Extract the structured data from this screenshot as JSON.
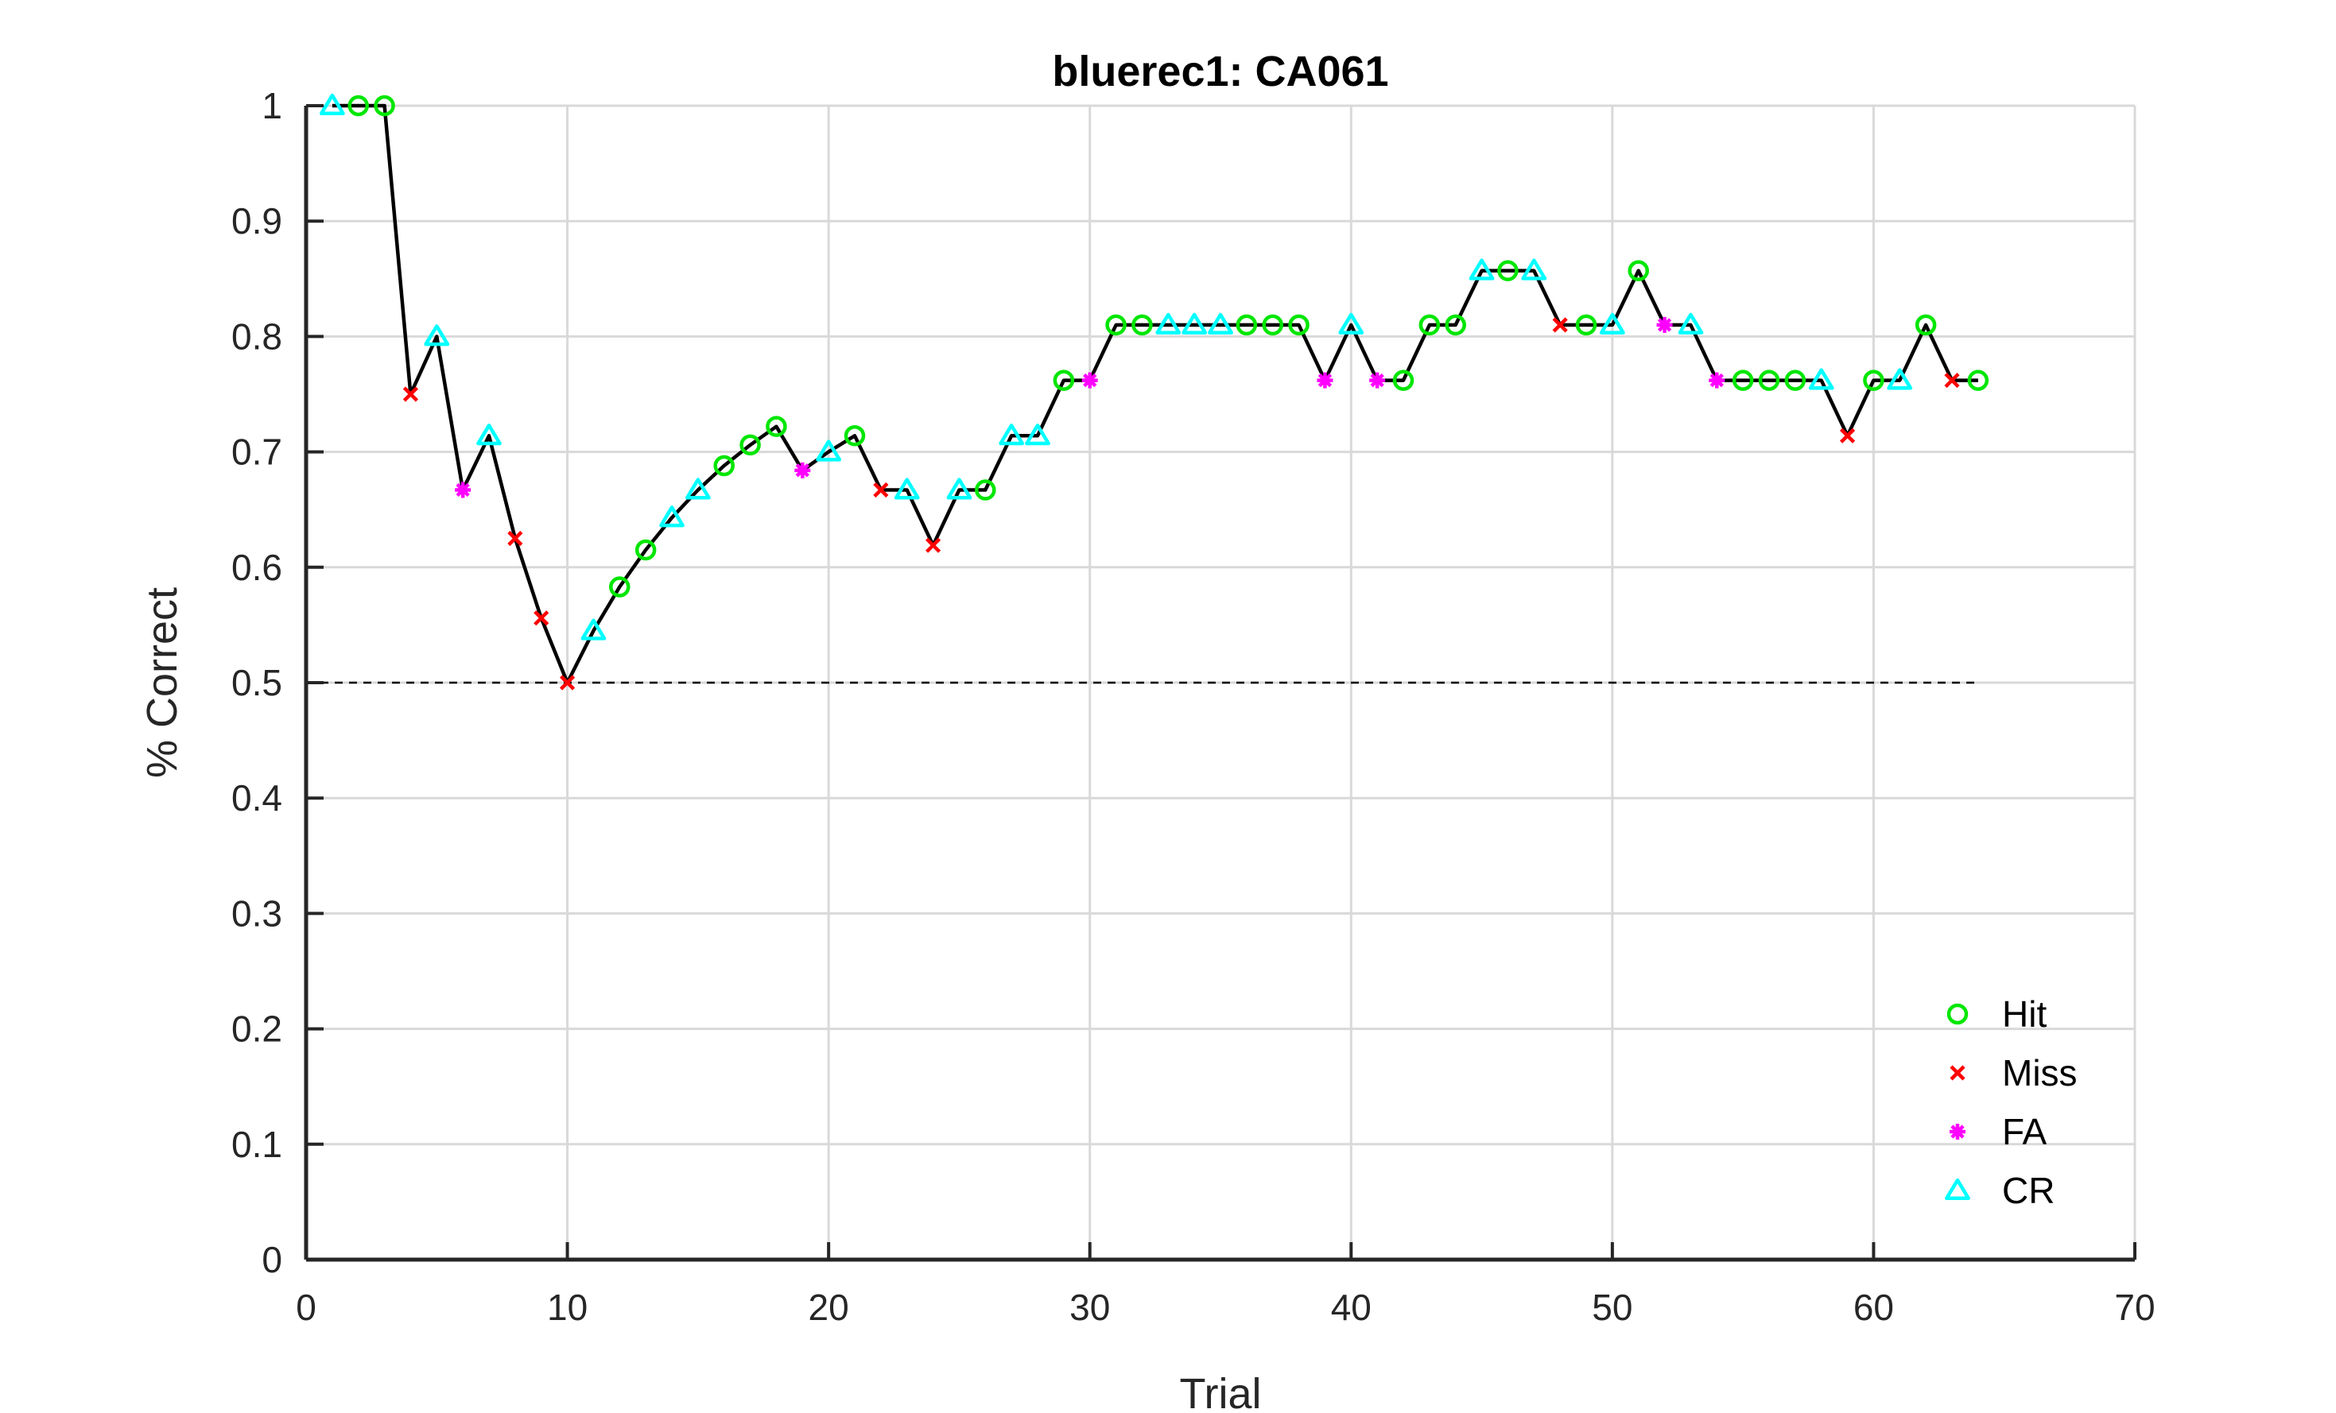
{
  "chart_data": {
    "type": "line",
    "title": "bluerec1: CA061",
    "xlabel": "Trial",
    "ylabel": "% Correct",
    "xlim": [
      0,
      70
    ],
    "ylim": [
      0,
      1
    ],
    "xticks": [
      0,
      10,
      20,
      30,
      40,
      50,
      60,
      70
    ],
    "yticks": [
      0,
      0.1,
      0.2,
      0.3,
      0.4,
      0.5,
      0.6,
      0.7,
      0.8,
      0.9,
      1
    ],
    "grid": true,
    "chance_line": {
      "y": 0.5,
      "x_start": 0,
      "x_end": 64,
      "style": "dashed"
    },
    "line_color": "#000000",
    "legend_position": "bottom-right",
    "series": [
      {
        "name": "Hit",
        "color": "#00e600",
        "marker": "circle"
      },
      {
        "name": "Miss",
        "color": "#ff0000",
        "marker": "x"
      },
      {
        "name": "FA",
        "color": "#ff00ff",
        "marker": "asterisk"
      },
      {
        "name": "CR",
        "color": "#00ffff",
        "marker": "triangle"
      }
    ],
    "trials": [
      {
        "x": 1,
        "y": 1.0,
        "outcome": "CR"
      },
      {
        "x": 2,
        "y": 1.0,
        "outcome": "Hit"
      },
      {
        "x": 3,
        "y": 1.0,
        "outcome": "Hit"
      },
      {
        "x": 4,
        "y": 0.75,
        "outcome": "Miss"
      },
      {
        "x": 5,
        "y": 0.8,
        "outcome": "CR"
      },
      {
        "x": 6,
        "y": 0.667,
        "outcome": "FA"
      },
      {
        "x": 7,
        "y": 0.714,
        "outcome": "CR"
      },
      {
        "x": 8,
        "y": 0.625,
        "outcome": "Miss"
      },
      {
        "x": 9,
        "y": 0.556,
        "outcome": "Miss"
      },
      {
        "x": 10,
        "y": 0.5,
        "outcome": "Miss"
      },
      {
        "x": 11,
        "y": 0.545,
        "outcome": "CR"
      },
      {
        "x": 12,
        "y": 0.583,
        "outcome": "Hit"
      },
      {
        "x": 13,
        "y": 0.615,
        "outcome": "Hit"
      },
      {
        "x": 14,
        "y": 0.643,
        "outcome": "CR"
      },
      {
        "x": 15,
        "y": 0.667,
        "outcome": "CR"
      },
      {
        "x": 16,
        "y": 0.688,
        "outcome": "Hit"
      },
      {
        "x": 17,
        "y": 0.706,
        "outcome": "Hit"
      },
      {
        "x": 18,
        "y": 0.722,
        "outcome": "Hit"
      },
      {
        "x": 19,
        "y": 0.684,
        "outcome": "FA"
      },
      {
        "x": 20,
        "y": 0.7,
        "outcome": "CR"
      },
      {
        "x": 21,
        "y": 0.714,
        "outcome": "Hit"
      },
      {
        "x": 22,
        "y": 0.667,
        "outcome": "Miss"
      },
      {
        "x": 23,
        "y": 0.667,
        "outcome": "CR"
      },
      {
        "x": 24,
        "y": 0.619,
        "outcome": "Miss"
      },
      {
        "x": 25,
        "y": 0.667,
        "outcome": "CR"
      },
      {
        "x": 26,
        "y": 0.667,
        "outcome": "Hit"
      },
      {
        "x": 27,
        "y": 0.714,
        "outcome": "CR"
      },
      {
        "x": 28,
        "y": 0.714,
        "outcome": "CR"
      },
      {
        "x": 29,
        "y": 0.762,
        "outcome": "Hit"
      },
      {
        "x": 30,
        "y": 0.762,
        "outcome": "FA"
      },
      {
        "x": 31,
        "y": 0.81,
        "outcome": "Hit"
      },
      {
        "x": 32,
        "y": 0.81,
        "outcome": "Hit"
      },
      {
        "x": 33,
        "y": 0.81,
        "outcome": "CR"
      },
      {
        "x": 34,
        "y": 0.81,
        "outcome": "CR"
      },
      {
        "x": 35,
        "y": 0.81,
        "outcome": "CR"
      },
      {
        "x": 36,
        "y": 0.81,
        "outcome": "Hit"
      },
      {
        "x": 37,
        "y": 0.81,
        "outcome": "Hit"
      },
      {
        "x": 38,
        "y": 0.81,
        "outcome": "Hit"
      },
      {
        "x": 39,
        "y": 0.762,
        "outcome": "FA"
      },
      {
        "x": 40,
        "y": 0.81,
        "outcome": "CR"
      },
      {
        "x": 41,
        "y": 0.762,
        "outcome": "FA"
      },
      {
        "x": 42,
        "y": 0.762,
        "outcome": "Hit"
      },
      {
        "x": 43,
        "y": 0.81,
        "outcome": "Hit"
      },
      {
        "x": 44,
        "y": 0.81,
        "outcome": "Hit"
      },
      {
        "x": 45,
        "y": 0.857,
        "outcome": "CR"
      },
      {
        "x": 46,
        "y": 0.857,
        "outcome": "Hit"
      },
      {
        "x": 47,
        "y": 0.857,
        "outcome": "CR"
      },
      {
        "x": 48,
        "y": 0.81,
        "outcome": "Miss"
      },
      {
        "x": 49,
        "y": 0.81,
        "outcome": "Hit"
      },
      {
        "x": 50,
        "y": 0.81,
        "outcome": "CR"
      },
      {
        "x": 51,
        "y": 0.857,
        "outcome": "Hit"
      },
      {
        "x": 52,
        "y": 0.81,
        "outcome": "FA"
      },
      {
        "x": 53,
        "y": 0.81,
        "outcome": "CR"
      },
      {
        "x": 54,
        "y": 0.762,
        "outcome": "FA"
      },
      {
        "x": 55,
        "y": 0.762,
        "outcome": "Hit"
      },
      {
        "x": 56,
        "y": 0.762,
        "outcome": "Hit"
      },
      {
        "x": 57,
        "y": 0.762,
        "outcome": "Hit"
      },
      {
        "x": 58,
        "y": 0.762,
        "outcome": "CR"
      },
      {
        "x": 59,
        "y": 0.714,
        "outcome": "Miss"
      },
      {
        "x": 60,
        "y": 0.762,
        "outcome": "Hit"
      },
      {
        "x": 61,
        "y": 0.762,
        "outcome": "CR"
      },
      {
        "x": 62,
        "y": 0.81,
        "outcome": "Hit"
      },
      {
        "x": 63,
        "y": 0.762,
        "outcome": "Miss"
      },
      {
        "x": 64,
        "y": 0.762,
        "outcome": "Hit"
      }
    ]
  }
}
